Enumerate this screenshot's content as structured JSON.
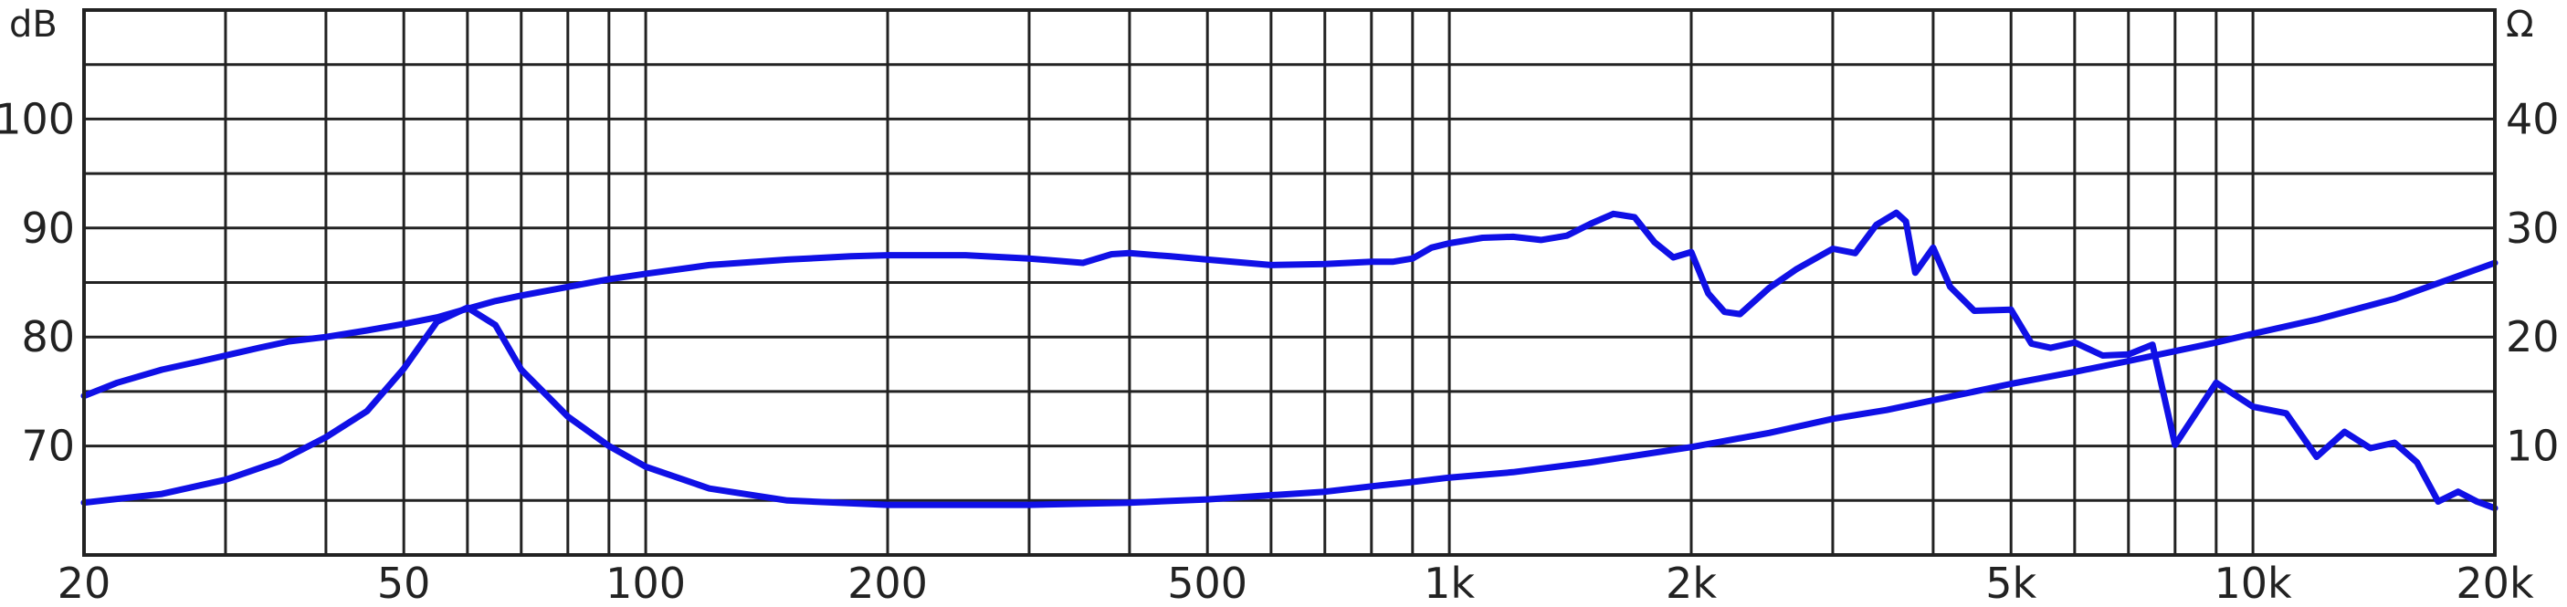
{
  "chart_data": {
    "type": "line",
    "x_scale": "log",
    "xlim": [
      20,
      20000
    ],
    "x_tick_values": [
      20,
      50,
      100,
      200,
      500,
      1000,
      2000,
      5000,
      10000,
      20000
    ],
    "x_tick_labels": [
      "20",
      "50",
      "100",
      "200",
      "500",
      "1k",
      "2k",
      "5k",
      "10k",
      "20k"
    ],
    "left_axis": {
      "unit": "dB",
      "lim": [
        60,
        110
      ],
      "tick_values": [
        70,
        80,
        90,
        100
      ],
      "tick_labels": [
        "70",
        "80",
        "90",
        "100"
      ]
    },
    "right_axis": {
      "unit": "Ω",
      "lim": [
        0,
        50
      ],
      "tick_values": [
        10,
        20,
        30,
        40
      ],
      "tick_labels": [
        "10",
        "20",
        "30",
        "40"
      ]
    },
    "grid": true,
    "line_color": "#1010e6",
    "series": [
      {
        "axis": "left",
        "x": [
          20,
          22,
          25,
          28,
          30,
          33,
          36,
          40,
          45,
          50,
          55,
          60,
          65,
          70,
          80,
          90,
          100,
          120,
          150,
          180,
          200,
          250,
          300,
          350,
          380,
          400,
          450,
          500,
          600,
          700,
          800,
          850,
          900,
          950,
          1000,
          1100,
          1200,
          1300,
          1400,
          1500,
          1600,
          1700,
          1800,
          1900,
          2000,
          2100,
          2200,
          2300,
          2500,
          2700,
          3000,
          3200,
          3400,
          3600,
          3700,
          3800,
          4000,
          4200,
          4500,
          5000,
          5300,
          5600,
          6000,
          6500,
          7000,
          7500,
          8000,
          9000,
          10000,
          11000,
          12000,
          13000,
          14000,
          15000,
          16000,
          17000,
          18000,
          19000,
          20000
        ],
        "values": [
          74.6,
          75.8,
          77,
          77.8,
          78.3,
          79,
          79.6,
          80,
          80.6,
          81.2,
          81.8,
          82.6,
          83.3,
          83.8,
          84.6,
          85.3,
          85.8,
          86.6,
          87.1,
          87.4,
          87.5,
          87.5,
          87.2,
          86.8,
          87.6,
          87.7,
          87.4,
          87.1,
          86.6,
          86.7,
          86.9,
          86.9,
          87.2,
          88.2,
          88.6,
          89.1,
          89.2,
          88.9,
          89.3,
          90.4,
          91.3,
          91,
          88.7,
          87.3,
          87.8,
          84,
          82.3,
          82.1,
          84.5,
          86.2,
          88.1,
          87.7,
          90.3,
          91.4,
          90.6,
          85.9,
          88.2,
          84.6,
          82.4,
          82.5,
          79.4,
          79,
          79.5,
          78.3,
          78.4,
          79.3,
          70.1,
          75.8,
          73.6,
          73,
          69,
          71.3,
          69.8,
          70.3,
          68.5,
          64.9,
          65.8,
          64.9,
          64.3
        ]
      },
      {
        "axis": "right",
        "x": [
          20,
          25,
          30,
          35,
          40,
          45,
          50,
          55,
          60,
          65,
          70,
          80,
          90,
          100,
          120,
          150,
          200,
          300,
          400,
          500,
          700,
          800,
          900,
          1000,
          1200,
          1500,
          2000,
          2500,
          3000,
          3500,
          4000,
          5000,
          6000,
          7000,
          8000,
          9000,
          10000,
          12000,
          15000,
          20000
        ],
        "values": [
          4.8,
          5.6,
          6.9,
          8.6,
          10.8,
          13.2,
          17.1,
          21.4,
          22.7,
          21.1,
          17,
          12.7,
          10,
          8.1,
          6.1,
          5,
          4.6,
          4.6,
          4.8,
          5.1,
          5.8,
          6.3,
          6.7,
          7.1,
          7.6,
          8.5,
          9.9,
          11.2,
          12.5,
          13.3,
          14.2,
          15.7,
          16.8,
          17.8,
          18.7,
          19.5,
          20.3,
          21.6,
          23.5,
          26.8
        ]
      }
    ]
  }
}
